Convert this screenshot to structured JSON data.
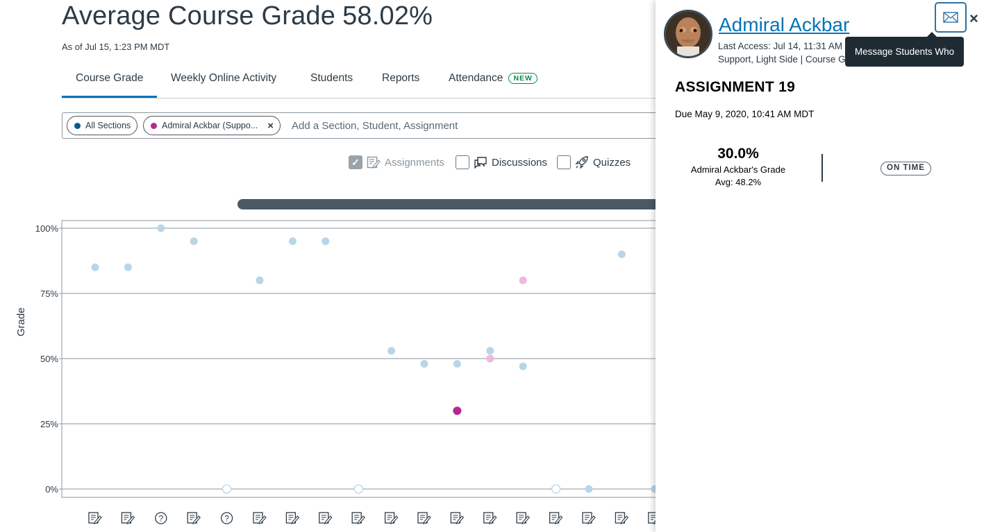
{
  "header": {
    "title": "Average Course Grade",
    "grade": "58.02%",
    "as_of": "As of Jul 15, 1:23 PM MDT"
  },
  "tabs": [
    {
      "label": "Course Grade",
      "active": true
    },
    {
      "label": "Weekly Online Activity"
    },
    {
      "label": "Students"
    },
    {
      "label": "Reports"
    },
    {
      "label": "Attendance",
      "badge": "NEW"
    }
  ],
  "filters": {
    "chips": [
      {
        "label": "All Sections",
        "color": "#0b5a8e"
      },
      {
        "label": "Admiral Ackbar (Suppo...",
        "color": "#b3298f",
        "removable": true
      }
    ],
    "placeholder": "Add a Section, Student, Assignment"
  },
  "toggles": [
    {
      "label": "Assignments",
      "checked": true,
      "icon": "assignment-icon",
      "disabled": true
    },
    {
      "label": "Discussions",
      "checked": false,
      "icon": "discussion-icon"
    },
    {
      "label": "Quizzes",
      "checked": false,
      "icon": "quiz-rocket-icon"
    }
  ],
  "chart_data": {
    "type": "scatter",
    "ylabel": "Grade",
    "ylim": [
      0,
      100
    ],
    "yticks": [
      "100%",
      "75%",
      "50%",
      "25%",
      "0%"
    ],
    "grid": true,
    "colors": {
      "course_avg": "#b8d6e8",
      "student": "#b3298f",
      "student_light": "#efb8dd"
    },
    "course_avg": [
      {
        "x": 1,
        "y": 85
      },
      {
        "x": 2,
        "y": 85
      },
      {
        "x": 3,
        "y": 100
      },
      {
        "x": 4,
        "y": 95
      },
      {
        "x": 5,
        "y": 0,
        "hollow": true
      },
      {
        "x": 6,
        "y": 80
      },
      {
        "x": 7,
        "y": 95
      },
      {
        "x": 8,
        "y": 95
      },
      {
        "x": 9,
        "y": 0,
        "hollow": true
      },
      {
        "x": 10,
        "y": 53
      },
      {
        "x": 11,
        "y": 48
      },
      {
        "x": 12,
        "y": 48
      },
      {
        "x": 13,
        "y": 53
      },
      {
        "x": 14,
        "y": 47
      },
      {
        "x": 15,
        "y": 0,
        "hollow": true
      },
      {
        "x": 16,
        "y": 0
      },
      {
        "x": 17,
        "y": 90
      },
      {
        "x": 18,
        "y": 0
      }
    ],
    "student": [
      {
        "x": 12,
        "y": 30,
        "selected": true
      },
      {
        "x": 13,
        "y": 50
      },
      {
        "x": 14,
        "y": 80
      }
    ],
    "x_icons": [
      "assignment-icon",
      "assignment-icon",
      "quiz-icon",
      "assignment-icon",
      "quiz-icon",
      "assignment-icon",
      "assignment-icon",
      "assignment-icon",
      "assignment-icon",
      "assignment-icon",
      "assignment-icon",
      "assignment-icon",
      "assignment-icon",
      "assignment-icon",
      "assignment-icon",
      "assignment-icon",
      "assignment-icon",
      "assignment-icon"
    ]
  },
  "panel": {
    "student_name": "Admiral Ackbar",
    "last_access": "Last Access: Jul 14, 11:31 AM",
    "sections": "Support, Light Side | Course Gr",
    "tooltip": "Message Students Who",
    "assignment_title": "ASSIGNMENT 19",
    "due": "Due May 9, 2020, 10:41 AM MDT",
    "score": "30.0%",
    "score_label": "Admiral Ackbar's Grade",
    "avg": "Avg: 48.2%",
    "status": "ON TIME"
  }
}
